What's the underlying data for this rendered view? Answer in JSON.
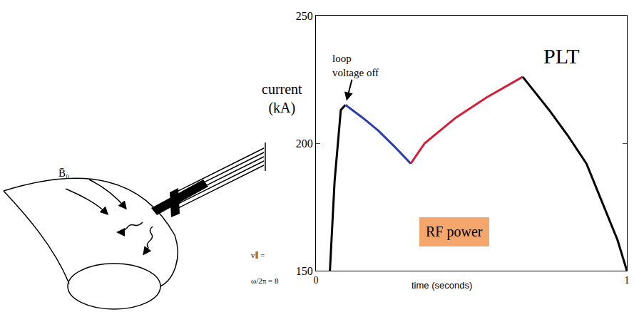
{
  "chart_data": {
    "type": "line",
    "title": "PLT",
    "ylabel": "current (kA)",
    "xlabel": "time (seconds)",
    "xlim": [
      0,
      1
    ],
    "xticks": [
      0,
      1
    ],
    "ylim": [
      150,
      250
    ],
    "yticks": [
      150,
      200,
      250
    ],
    "series": [
      {
        "color": "#000000",
        "x": [
          0.045,
          0.06,
          0.08,
          0.095
        ],
        "values": [
          150,
          185,
          213,
          215
        ]
      },
      {
        "color": "#2b3fa8",
        "x": [
          0.095,
          0.15,
          0.2,
          0.25,
          0.305
        ],
        "values": [
          215,
          210,
          205,
          199,
          192
        ]
      },
      {
        "color": "#d0203a",
        "x": [
          0.305,
          0.35,
          0.45,
          0.55,
          0.665
        ],
        "values": [
          192,
          200,
          210,
          218,
          226
        ]
      },
      {
        "color": "#000000",
        "x": [
          0.665,
          0.75,
          0.81,
          0.87,
          0.92,
          0.97,
          1.0
        ],
        "values": [
          226,
          213,
          203,
          192,
          177,
          162,
          150
        ]
      }
    ],
    "annotations": [
      {
        "text": "loop voltage off"
      },
      {
        "text": "RF power",
        "color": "#f4a66c"
      }
    ]
  },
  "diagram": {
    "labels": [
      "B̄₀",
      "v∥ =",
      "ω/2π = 8"
    ]
  }
}
